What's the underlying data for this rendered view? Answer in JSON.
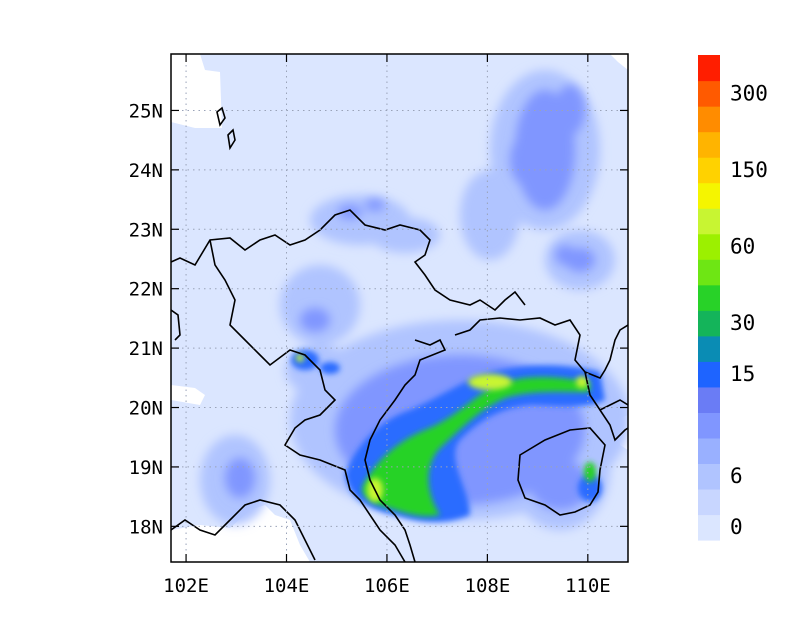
{
  "map": {
    "lon_range": [
      101.7,
      110.8
    ],
    "lat_range": [
      17.4,
      25.95
    ],
    "x_ticks": [
      {
        "value": 102,
        "label": "102E"
      },
      {
        "value": 104,
        "label": "104E"
      },
      {
        "value": 106,
        "label": "106E"
      },
      {
        "value": 108,
        "label": "108E"
      },
      {
        "value": 110,
        "label": "110E"
      }
    ],
    "y_ticks": [
      {
        "value": 18,
        "label": "18N"
      },
      {
        "value": 19,
        "label": "19N"
      },
      {
        "value": 20,
        "label": "20N"
      },
      {
        "value": 21,
        "label": "21N"
      },
      {
        "value": 22,
        "label": "22N"
      },
      {
        "value": 23,
        "label": "23N"
      },
      {
        "value": 24,
        "label": "24N"
      },
      {
        "value": 25,
        "label": "25N"
      }
    ],
    "grid": "dotted",
    "background_color": "#dbe6ff"
  },
  "colorbar": {
    "colors": [
      "#dbe6ff",
      "#c8d6ff",
      "#b0c4ff",
      "#99b0ff",
      "#8096ff",
      "#6a7cf5",
      "#1e64ff",
      "#0a8cb4",
      "#14b45a",
      "#28d228",
      "#6ee614",
      "#9cf000",
      "#c8f532",
      "#f5f500",
      "#ffd200",
      "#ffb400",
      "#ff8c00",
      "#ff5a00",
      "#ff1e00"
    ],
    "labels": [
      {
        "index": 0,
        "text": "0"
      },
      {
        "index": 2,
        "text": "6"
      },
      {
        "index": 6,
        "text": "15"
      },
      {
        "index": 8,
        "text": "30"
      },
      {
        "index": 11,
        "text": "60"
      },
      {
        "index": 14,
        "text": "150"
      },
      {
        "index": 17,
        "text": "300"
      }
    ]
  }
}
